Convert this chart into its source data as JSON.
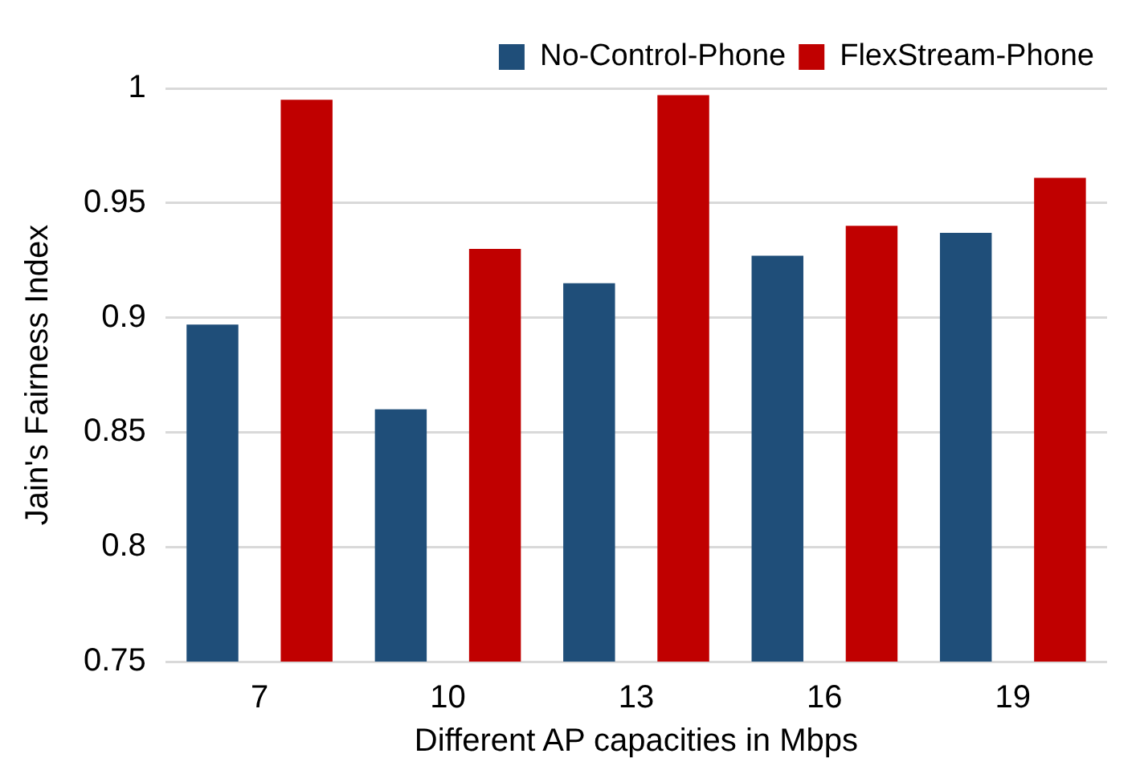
{
  "chart_data": {
    "type": "bar",
    "xlabel": "Different AP capacities in Mbps",
    "ylabel": "Jain's Fairness Index",
    "categories": [
      "7",
      "10",
      "13",
      "16",
      "19"
    ],
    "series": [
      {
        "name": "No-Control-Phone",
        "color": "#1f4e79",
        "values": [
          0.897,
          0.86,
          0.915,
          0.927,
          0.937
        ]
      },
      {
        "name": "FlexStream-Phone",
        "color": "#c00000",
        "values": [
          0.995,
          0.93,
          0.997,
          0.94,
          0.961
        ]
      }
    ],
    "ylim": [
      0.75,
      1
    ],
    "yticks": [
      0.75,
      0.8,
      0.85,
      0.9,
      0.95,
      1
    ],
    "grid": "y",
    "legend": "top right"
  }
}
